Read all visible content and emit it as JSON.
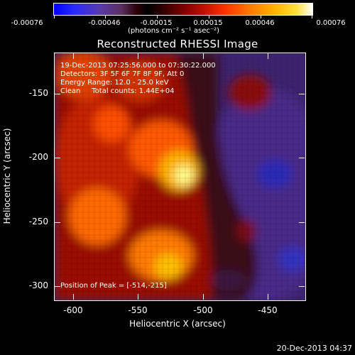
{
  "colorbar": {
    "labels": [
      "-0.00076",
      "-0.00046",
      "-0.00015",
      "0.00015",
      "0.00046",
      "0.00076"
    ],
    "units": "(photons cm⁻² s⁻¹ asec⁻²)"
  },
  "title": "Reconstructed RHESSI Image",
  "annotations": {
    "time_range": "19-Dec-2013 07:25:56.000 to 07:30:22.000",
    "detectors": "Detectors: 3F 5F 6F 7F 8F 9F, Att 0",
    "energy_range": "Energy Range: 12.0 - 25.0 keV",
    "clean_counts": "Clean     Total counts: 1.44E+04",
    "peak_position": "Position of Peak = [-514,-215]"
  },
  "axes": {
    "x_label": "Heliocentric X (arcsec)",
    "y_label": "Heliocentric Y (arcsec)",
    "x_ticks": [
      "-600",
      "-550",
      "-500",
      "-450"
    ],
    "y_ticks": [
      "-150",
      "-200",
      "-250",
      "-300"
    ]
  },
  "datestamp": "20-Dec-2013 04:37",
  "colors": {
    "background": "#000000",
    "text": "#ffffff",
    "low": "#0000ff",
    "mid": "#000000",
    "high": "#ffffff"
  }
}
